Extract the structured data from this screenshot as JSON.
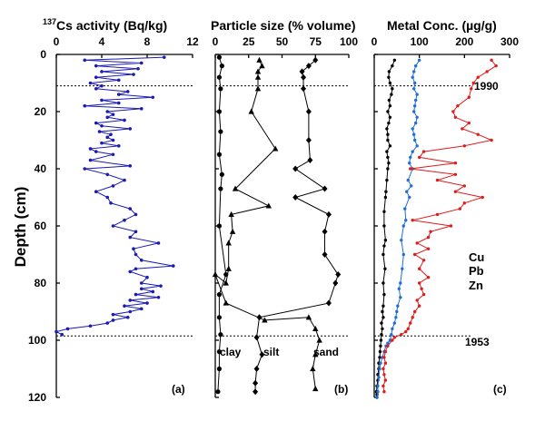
{
  "y_axis": {
    "label": "Depth (cm)",
    "ticks": [
      0,
      20,
      40,
      60,
      80,
      100,
      120
    ],
    "range": [
      0,
      120
    ],
    "reversed": true
  },
  "reference_lines": [
    {
      "depth": 11,
      "label": "1990"
    },
    {
      "depth": 98.5,
      "label": "1953"
    }
  ],
  "panels": [
    {
      "id": "a",
      "title_sup": "137",
      "title": "Cs activity (Bq/kg)",
      "ticks": [
        "0",
        "4",
        "8",
        "12"
      ],
      "tag": "(a)"
    },
    {
      "id": "b",
      "title": "Particle size (% volume)",
      "ticks": [
        "0",
        "25",
        "50",
        "75",
        "100"
      ],
      "tag": "(b)",
      "annotations": [
        "clay",
        "silt",
        "sand"
      ]
    },
    {
      "id": "c",
      "title": "Metal Conc. (µg/g)",
      "ticks": [
        "0",
        "100",
        "200",
        "300"
      ],
      "tag": "(c)",
      "legend": [
        {
          "label": "Cu",
          "color": "#000000"
        },
        {
          "label": "Pb",
          "color": "#1f6fd6"
        },
        {
          "label": "Zn",
          "color": "#e01b1b"
        }
      ]
    }
  ],
  "chart_data": [
    {
      "type": "line",
      "panel": "a",
      "xlim": [
        0,
        12
      ],
      "ylim": [
        120,
        0
      ],
      "series": [
        {
          "color": "#1a1ab4",
          "x": [
            9.5,
            2.5,
            7.5,
            3.5,
            7.2,
            4,
            6.8,
            3.5,
            5.5,
            3,
            4,
            3.5,
            6.3,
            5.5,
            8.5,
            4,
            5.5,
            2.5,
            7.5,
            4.5,
            5,
            4.5,
            6,
            3.5,
            4,
            6.5,
            3.8,
            4.8,
            4.5,
            5,
            4,
            5.5,
            3,
            3.5,
            5,
            3,
            6.5,
            2.5,
            4.5,
            6,
            5,
            3.5,
            4.5,
            4.8,
            6.5,
            7,
            6,
            5,
            7,
            6.5,
            9,
            6.8,
            7,
            7.5,
            10.3,
            7,
            6.5,
            8,
            7.5,
            9.2,
            7.5,
            8.5,
            7,
            9,
            6.5,
            8,
            6,
            7.5,
            6.5,
            5,
            6.3,
            5,
            4.5,
            3,
            1,
            0,
            0.5
          ],
          "y": [
            1,
            2,
            3,
            4,
            5,
            6,
            7,
            8,
            9,
            10,
            11,
            12,
            13,
            14,
            15,
            16,
            17,
            18,
            19,
            20,
            21,
            22,
            23,
            24,
            25,
            26,
            27,
            28,
            29,
            30,
            31,
            32,
            33,
            34,
            35,
            37,
            39,
            40,
            42,
            44,
            46,
            48,
            50,
            52,
            54,
            56,
            58,
            60,
            62,
            64,
            66,
            68,
            70,
            72,
            74,
            75,
            76,
            78,
            80,
            81,
            82,
            83,
            84,
            85,
            86,
            87,
            88,
            89,
            90,
            91,
            92,
            93,
            94,
            95,
            96,
            97,
            98
          ]
        }
      ]
    },
    {
      "type": "line",
      "panel": "b",
      "xlim": [
        0,
        100
      ],
      "ylim": [
        120,
        0
      ],
      "series": [
        {
          "marker": "circle",
          "x": [
            3,
            5,
            3,
            4,
            3,
            4,
            3,
            5,
            4,
            3,
            8,
            3,
            3,
            4,
            3,
            3,
            2
          ],
          "y": [
            1,
            4,
            8,
            12,
            20,
            27,
            35,
            42,
            47,
            60,
            77,
            84,
            92,
            98,
            104,
            110,
            118
          ]
        },
        {
          "marker": "triangle",
          "x": [
            33,
            35,
            32,
            32,
            32,
            27,
            45,
            15,
            40,
            12,
            13,
            10,
            10,
            8,
            0,
            8,
            37,
            70,
            75,
            78,
            75,
            73,
            75
          ],
          "y": [
            2,
            4,
            6,
            8,
            12,
            20,
            33,
            47,
            53,
            56,
            62,
            66,
            75,
            80,
            77,
            87,
            93,
            92,
            96,
            100,
            105,
            110,
            117
          ]
        },
        {
          "marker": "diamond",
          "x": [
            75,
            70,
            65,
            66,
            66,
            70,
            70,
            71,
            60,
            82,
            60,
            85,
            82,
            82,
            92,
            90,
            85,
            33,
            31,
            35,
            31,
            30,
            30
          ],
          "y": [
            2,
            4,
            6,
            8,
            12,
            20,
            30,
            37,
            40,
            47,
            50,
            56,
            62,
            70,
            77,
            80,
            87,
            92,
            99,
            105,
            110,
            115,
            118
          ]
        }
      ]
    },
    {
      "type": "line",
      "panel": "c",
      "xlim": [
        0,
        300
      ],
      "ylim": [
        120,
        0
      ],
      "series": [
        {
          "name": "Cu",
          "color": "#000000",
          "x": [
            45,
            40,
            33,
            32,
            35,
            40,
            38,
            33,
            35,
            30,
            35,
            32,
            28,
            30,
            30,
            35,
            28,
            30,
            32,
            30,
            28,
            26,
            25,
            22,
            22,
            25,
            22,
            20,
            24,
            20,
            22,
            20,
            18,
            20,
            16,
            18,
            16,
            15,
            14,
            13,
            12,
            10,
            10,
            8,
            8,
            6,
            5,
            6,
            6
          ],
          "y": [
            2,
            4,
            6,
            8,
            10,
            12,
            14,
            16,
            18,
            20,
            22,
            24,
            26,
            28,
            30,
            32,
            34,
            36,
            38,
            40,
            44,
            48,
            50,
            55,
            60,
            65,
            67,
            70,
            75,
            80,
            84,
            88,
            90,
            92,
            94,
            96,
            98,
            100,
            102,
            104,
            106,
            108,
            110,
            112,
            114,
            116,
            118,
            119,
            120
          ]
        },
        {
          "name": "Pb",
          "color": "#1f6fd6",
          "x": [
            100,
            92,
            88,
            85,
            90,
            88,
            95,
            92,
            90,
            88,
            95,
            92,
            85,
            88,
            90,
            95,
            85,
            80,
            78,
            85,
            75,
            82,
            72,
            78,
            68,
            70,
            65,
            60,
            65,
            62,
            58,
            55,
            58,
            52,
            50,
            48,
            45,
            40,
            38,
            35,
            30,
            26,
            22,
            18,
            14,
            12,
            10,
            8,
            8,
            6
          ],
          "y": [
            2,
            4,
            6,
            8,
            10,
            12,
            14,
            16,
            18,
            20,
            22,
            24,
            26,
            28,
            30,
            32,
            34,
            36,
            38,
            40,
            44,
            46,
            48,
            50,
            54,
            58,
            60,
            65,
            70,
            75,
            80,
            82,
            85,
            88,
            90,
            92,
            94,
            96,
            98,
            100,
            101,
            102,
            104,
            106,
            108,
            110,
            113,
            116,
            118,
            120
          ]
        },
        {
          "name": "Zn",
          "color": "#e01b1b",
          "x": [
            260,
            270,
            250,
            230,
            220,
            215,
            210,
            185,
            175,
            180,
            210,
            195,
            230,
            260,
            200,
            110,
            100,
            180,
            80,
            180,
            140,
            200,
            180,
            240,
            200,
            190,
            140,
            85,
            170,
            125,
            120,
            95,
            120,
            90,
            110,
            100,
            120,
            100,
            105,
            110,
            95,
            100,
            90,
            85,
            80,
            75,
            70,
            60,
            45,
            40,
            30,
            25,
            22,
            25,
            20,
            22,
            25,
            20,
            22
          ],
          "y": [
            2,
            4,
            6,
            8,
            10,
            12,
            15,
            18,
            20,
            22,
            24,
            26,
            28,
            30,
            32,
            34,
            36,
            38,
            40,
            42,
            44,
            46,
            48,
            50,
            52,
            54,
            56,
            58,
            60,
            62,
            64,
            66,
            68,
            70,
            72,
            75,
            78,
            80,
            82,
            84,
            86,
            88,
            90,
            92,
            94,
            96,
            97,
            98,
            99,
            100,
            102,
            104,
            106,
            108,
            110,
            112,
            114,
            116,
            118
          ]
        }
      ]
    }
  ]
}
